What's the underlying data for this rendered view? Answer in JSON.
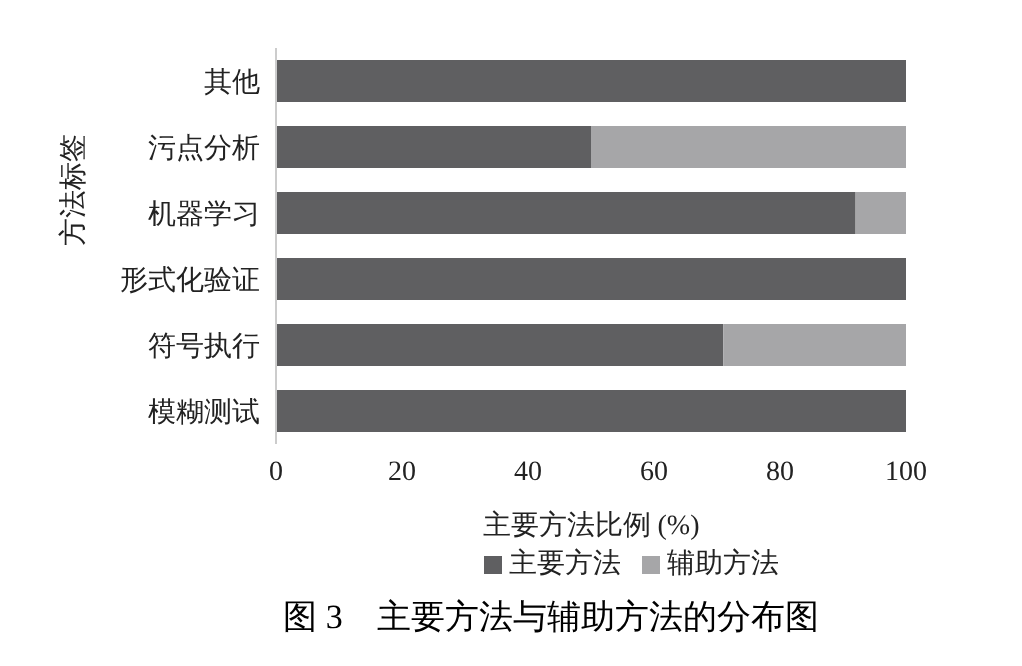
{
  "chart_data": {
    "type": "bar",
    "orientation": "horizontal",
    "stacked": true,
    "title": "图 3　主要方法与辅助方法的分布图",
    "xlabel": "主要方法比例 (%)",
    "ylabel": "方法标签",
    "categories": [
      "其他",
      "污点分析",
      "机器学习",
      "形式化验证",
      "符号执行",
      "模糊测试"
    ],
    "series": [
      {
        "name": "主要方法",
        "color": "#5f5f61",
        "values": [
          100,
          50,
          92,
          100,
          71,
          100
        ]
      },
      {
        "name": "辅助方法",
        "color": "#a6a6a8",
        "values": [
          0,
          50,
          8,
          0,
          29,
          0
        ]
      }
    ],
    "xlim": [
      0,
      100
    ],
    "xticks": [
      0,
      20,
      40,
      60,
      80,
      100
    ],
    "grid": false,
    "legend": "bottom"
  }
}
